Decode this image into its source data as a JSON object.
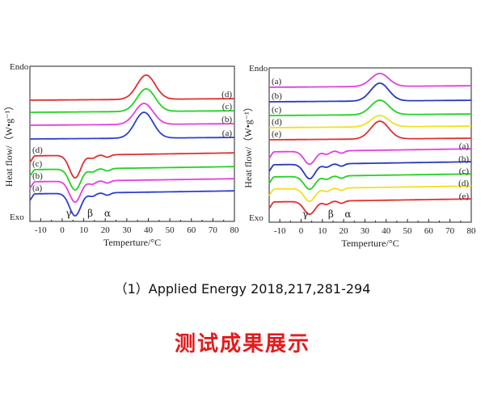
{
  "citation": "（1）Applied Energy 2018,217,281-294",
  "caption": "测试成果展示",
  "chart_data": [
    {
      "type": "line",
      "xlabel": "Temperture/°C",
      "ylabel": "Heat flow/（W•g⁻¹）",
      "xlim": [
        -15,
        80
      ],
      "xticks": [
        -10,
        0,
        10,
        20,
        30,
        40,
        50,
        60,
        70,
        80
      ],
      "endo_label": "Endo",
      "exo_label": "Exo",
      "peak_labels": [
        {
          "text": "γ",
          "x": 3
        },
        {
          "text": "β",
          "x": 13
        },
        {
          "text": "α",
          "x": 21
        }
      ],
      "series": [
        {
          "name": "(d)",
          "group": "heating",
          "color": "#e03030",
          "peak_x": 39,
          "peak_height": 30
        },
        {
          "name": "(c)",
          "group": "heating",
          "color": "#22d222",
          "peak_x": 39,
          "peak_height": 28
        },
        {
          "name": "(b)",
          "group": "heating",
          "color": "#e040e0",
          "peak_x": 38,
          "peak_height": 26
        },
        {
          "name": "(a)",
          "group": "heating",
          "color": "#2f3fd0",
          "peak_x": 38,
          "peak_height": 32
        },
        {
          "name": "(d)",
          "group": "cooling",
          "color": "#e03030",
          "dip_x": 6,
          "dip_depth": 28
        },
        {
          "name": "(c)",
          "group": "cooling",
          "color": "#22d222",
          "dip_x": 6,
          "dip_depth": 26
        },
        {
          "name": "(b)",
          "group": "cooling",
          "color": "#e040e0",
          "dip_x": 6,
          "dip_depth": 26
        },
        {
          "name": "(a)",
          "group": "cooling",
          "color": "#2f3fd0",
          "dip_x": 6,
          "dip_depth": 28
        }
      ]
    },
    {
      "type": "line",
      "xlabel": "Temperture/°C",
      "ylabel": "Heat flow/（W•g⁻¹）",
      "xlim": [
        -15,
        80
      ],
      "xticks": [
        -10,
        0,
        10,
        20,
        30,
        40,
        50,
        60,
        70,
        80
      ],
      "endo_label": "Endo",
      "exo_label": "Exo",
      "peak_labels": [
        {
          "text": "γ",
          "x": 2
        },
        {
          "text": "β",
          "x": 14
        },
        {
          "text": "α",
          "x": 22
        }
      ],
      "series": [
        {
          "name": "(a)",
          "group": "heating",
          "color": "#e040e0",
          "peak_x": 37,
          "peak_height": 16
        },
        {
          "name": "(b)",
          "group": "heating",
          "color": "#2a3ab8",
          "peak_x": 37,
          "peak_height": 22
        },
        {
          "name": "(c)",
          "group": "heating",
          "color": "#22d222",
          "peak_x": 37,
          "peak_height": 18
        },
        {
          "name": "(d)",
          "group": "heating",
          "color": "#f0e020",
          "peak_x": 37,
          "peak_height": 14
        },
        {
          "name": "(e)",
          "group": "heating",
          "color": "#e03030",
          "peak_x": 37,
          "peak_height": 22
        },
        {
          "name": "(a)",
          "group": "cooling",
          "color": "#e040e0",
          "dip_x": 4,
          "dip_depth": 16
        },
        {
          "name": "(b)",
          "group": "cooling",
          "color": "#2a3ab8",
          "dip_x": 4,
          "dip_depth": 18
        },
        {
          "name": "(c)",
          "group": "cooling",
          "color": "#22d222",
          "dip_x": 4,
          "dip_depth": 16
        },
        {
          "name": "(d)",
          "group": "cooling",
          "color": "#f0e020",
          "dip_x": 4,
          "dip_depth": 16
        },
        {
          "name": "(e)",
          "group": "cooling",
          "color": "#e03030",
          "dip_x": 4,
          "dip_depth": 16
        }
      ]
    }
  ]
}
